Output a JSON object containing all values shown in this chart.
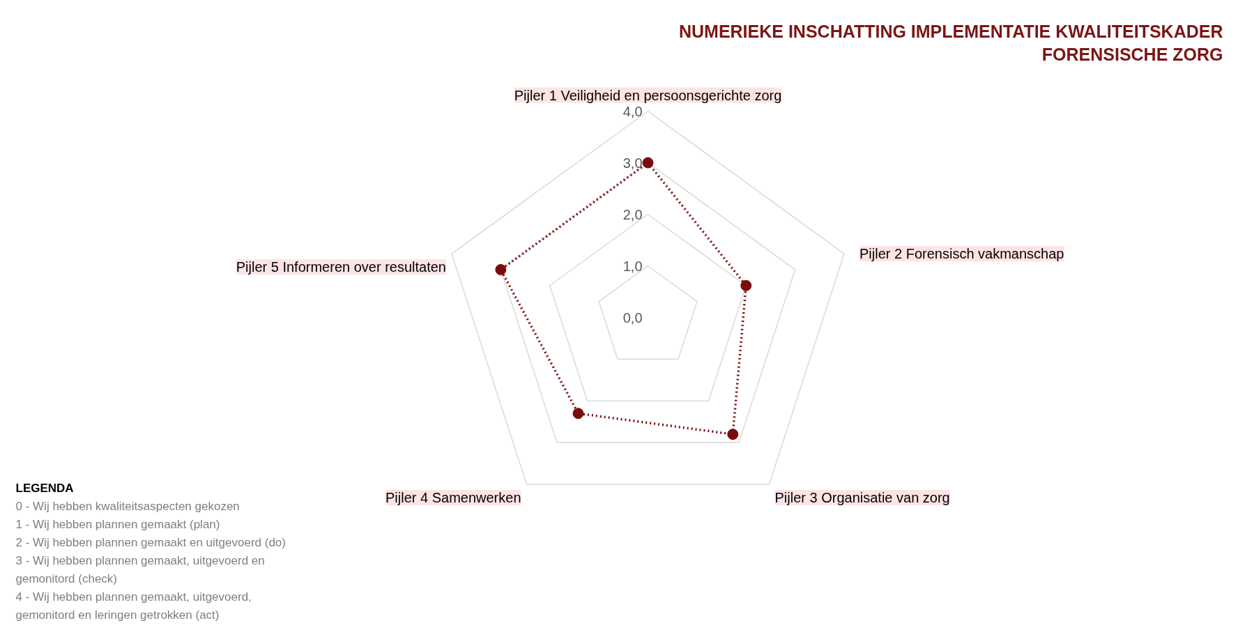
{
  "chart_data": {
    "type": "radar",
    "title": "NUMERIEKE INSCHATTING IMPLEMENTATIE KWALITEITSKADER\nFORENSISCHE ZORG",
    "categories": [
      "Pijler 1 Veiligheid en persoonsgerichte zorg",
      "Pijler 2 Forensisch vakmanschap",
      "Pijler 3 Organisatie van zorg",
      "Pijler 4 Samenwerken",
      "Pijler 5 Informeren over resultaten"
    ],
    "series": [
      {
        "color": "#7b0c0c",
        "values": [
          3.0,
          2.0,
          2.8,
          2.3,
          3.0
        ]
      }
    ],
    "ylim": [
      0,
      4
    ],
    "yticks": [
      {
        "value": 0,
        "label": "0,0"
      },
      {
        "value": 1,
        "label": "1,0"
      },
      {
        "value": 2,
        "label": "2,0"
      },
      {
        "value": 3,
        "label": "3,0"
      },
      {
        "value": 4,
        "label": "4,0"
      }
    ],
    "grid": true,
    "marker": "circle",
    "line_style": "dotted",
    "annotations": [
      "LEGENDA",
      "0  - Wij hebben kwaliteitsaspecten gekozen",
      "1 - Wij hebben plannen gemaakt (plan)",
      "2 - Wij hebben plannen gemaakt en uitgevoerd (do)",
      "3 -  Wij hebben plannen gemaakt, uitgevoerd en gemonitord (check)",
      "4 - Wij hebben plannen gemaakt, uitgevoerd, gemonitord en leringen getrokken (act)"
    ]
  }
}
